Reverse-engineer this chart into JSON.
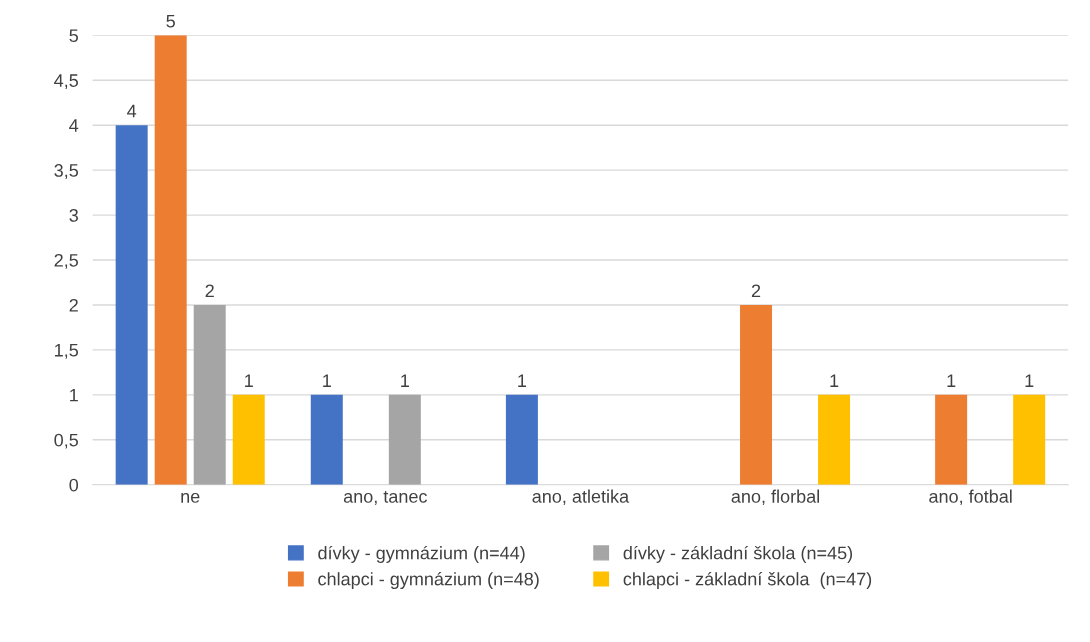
{
  "chart_data": {
    "type": "bar",
    "categories": [
      "ne",
      "ano, tanec",
      "ano, atletika",
      "ano, florbal",
      "ano, fotbal"
    ],
    "series": [
      {
        "name": "dívky - gymnázium (n=44)",
        "color": "#4472c4",
        "values": [
          4,
          1,
          1,
          null,
          null
        ]
      },
      {
        "name": "chlapci - gymnázium (n=48)",
        "color": "#ed7d31",
        "values": [
          5,
          null,
          null,
          2,
          1
        ]
      },
      {
        "name": "dívky - základní škola (n=45)",
        "color": "#a5a5a5",
        "values": [
          2,
          1,
          null,
          null,
          null
        ]
      },
      {
        "name": "chlapci - základní škola  (n=47)",
        "color": "#ffc000",
        "values": [
          1,
          null,
          null,
          1,
          1
        ]
      }
    ],
    "ylim": [
      0,
      5
    ],
    "yticks": [
      0,
      {
        "value": 0.5,
        "label": "0,5"
      },
      1,
      {
        "value": 1.5,
        "label": "1,5"
      },
      2,
      {
        "value": 2.5,
        "label": "2,5"
      },
      3,
      {
        "value": 3.5,
        "label": "3,5"
      },
      4,
      {
        "value": 4.5,
        "label": "4,5"
      },
      5
    ],
    "grid": "y",
    "legend": "bottom",
    "data_labels": true
  }
}
